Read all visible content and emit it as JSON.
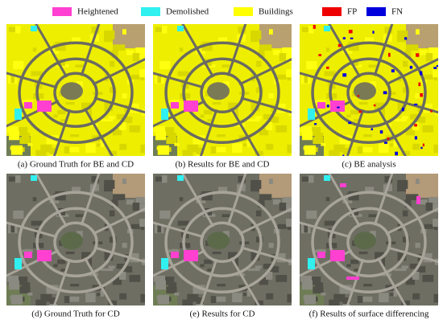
{
  "legend": [
    {
      "label": "Heightened",
      "color": "#ff40d0"
    },
    {
      "label": "Demolished",
      "color": "#30f0f0"
    },
    {
      "label": "Buildings",
      "color": "#ffff00"
    },
    {
      "label": "FP",
      "color": "#ee0000"
    },
    {
      "label": "FN",
      "color": "#0000dd"
    }
  ],
  "panels": [
    {
      "caption": "(a) Ground Truth for BE and CD"
    },
    {
      "caption": "(b) Results for BE and CD"
    },
    {
      "caption": "(c) BE analysis"
    },
    {
      "caption": "(d) Ground Truth for CD"
    },
    {
      "caption": "(e) Results for CD"
    },
    {
      "caption": "(f) Results of surface differencing"
    }
  ]
}
